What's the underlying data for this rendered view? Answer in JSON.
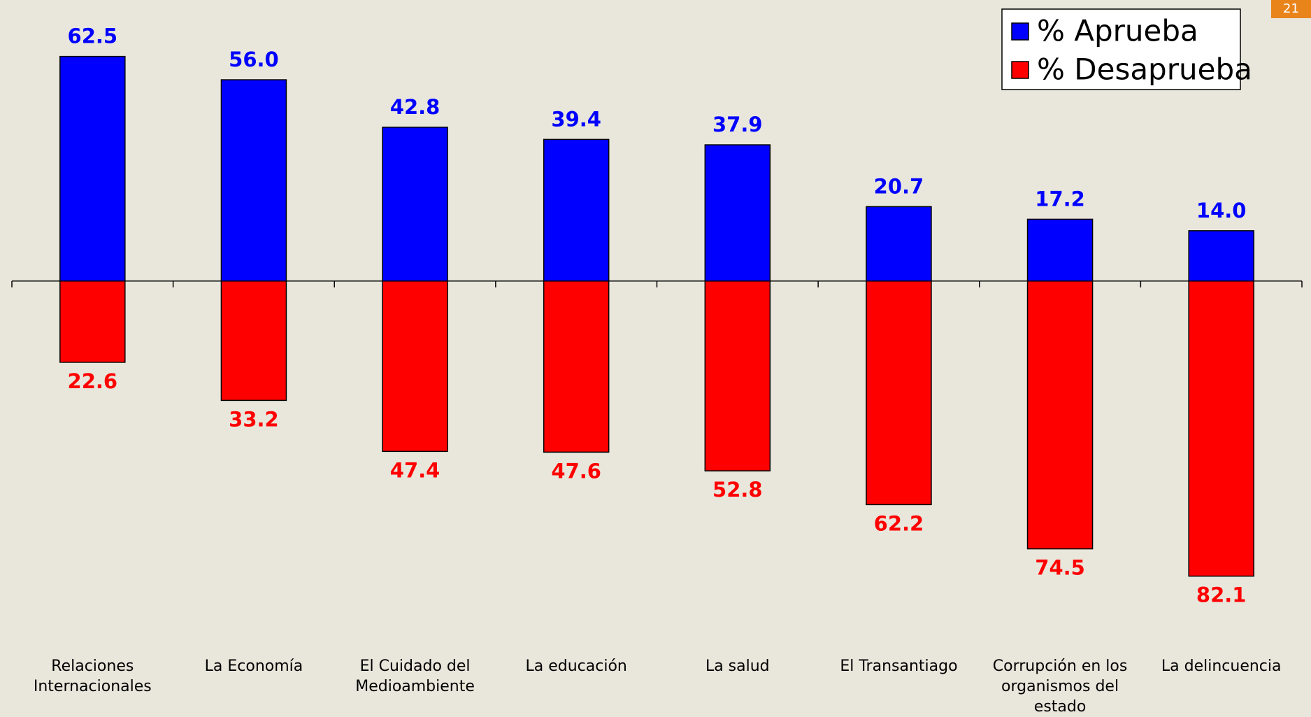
{
  "page_number": "21",
  "chart_data": {
    "type": "bar",
    "diverging": true,
    "categories": [
      "Relaciones Internacionales",
      "La Economía",
      "El Cuidado del Medioambiente",
      "La educación",
      "La salud",
      "El Transantiago",
      "Corrupción en los organismos del estado",
      "La delincuencia"
    ],
    "series": [
      {
        "name": "% Aprueba",
        "color": "#0000ff",
        "values": [
          62.5,
          56.0,
          42.8,
          39.4,
          37.9,
          20.7,
          17.2,
          14.0
        ],
        "value_labels": [
          "62.5",
          "56.0",
          "42.8",
          "39.4",
          "37.9",
          "20.7",
          "17.2",
          "14.0"
        ]
      },
      {
        "name": "% Desaprueba",
        "color": "#ff0000",
        "values": [
          22.6,
          33.2,
          47.4,
          47.6,
          52.8,
          62.2,
          74.5,
          82.1
        ],
        "value_labels": [
          "22.6",
          "33.2",
          "47.4",
          "47.6",
          "52.8",
          "62.2",
          "74.5",
          "82.1"
        ]
      }
    ],
    "ylim": [
      -110,
      78
    ],
    "legend": "top-right"
  }
}
